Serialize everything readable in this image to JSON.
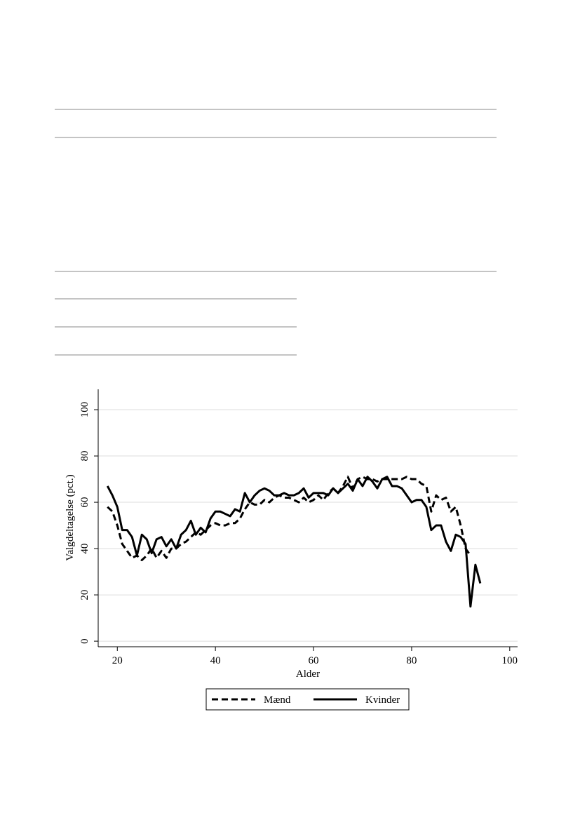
{
  "chart_data": {
    "type": "line",
    "xlabel": "Alder",
    "ylabel": "Valgdeltagelse (pct.)",
    "x": [
      18,
      19,
      20,
      21,
      22,
      23,
      24,
      25,
      26,
      27,
      28,
      29,
      30,
      31,
      32,
      33,
      34,
      35,
      36,
      37,
      38,
      39,
      40,
      41,
      42,
      43,
      44,
      45,
      46,
      47,
      48,
      49,
      50,
      51,
      52,
      53,
      54,
      55,
      56,
      57,
      58,
      59,
      60,
      61,
      62,
      63,
      64,
      65,
      66,
      67,
      68,
      69,
      70,
      71,
      72,
      73,
      74,
      75,
      76,
      77,
      78,
      79,
      80,
      81,
      82,
      83,
      84,
      85,
      86,
      87,
      88,
      89,
      90,
      91,
      92,
      93,
      94
    ],
    "series": [
      {
        "name": "Mænd",
        "color": "#000000",
        "linestyle": "dashed",
        "values": [
          58,
          56,
          50,
          42,
          39,
          36,
          37,
          35,
          37,
          40,
          36,
          39,
          36,
          40,
          40,
          42,
          43,
          45,
          47,
          46,
          48,
          50,
          51,
          50,
          50,
          51,
          51,
          53,
          57,
          60,
          59,
          59,
          61,
          60,
          62,
          63,
          62,
          62,
          61,
          60,
          62,
          60,
          61,
          63,
          61,
          64,
          66,
          64,
          67,
          71,
          66,
          70,
          71,
          70,
          70,
          69,
          70,
          70,
          70,
          70,
          70,
          71,
          70,
          70,
          68,
          67,
          56,
          63,
          61,
          62,
          56,
          58,
          50,
          40,
          37,
          null,
          null
        ]
      },
      {
        "name": "Kvinder",
        "color": "#000000",
        "linestyle": "solid",
        "values": [
          67,
          63,
          58,
          48,
          48,
          45,
          37,
          46,
          44,
          38,
          44,
          45,
          41,
          44,
          40,
          46,
          48,
          52,
          46,
          49,
          47,
          53,
          56,
          56,
          55,
          54,
          57,
          56,
          64,
          60,
          63,
          65,
          66,
          65,
          63,
          63,
          64,
          63,
          63,
          64,
          66,
          62,
          64,
          64,
          64,
          63,
          66,
          64,
          66,
          68,
          65,
          70,
          67,
          71,
          69,
          66,
          70,
          71,
          67,
          67,
          66,
          63,
          60,
          61,
          61,
          58,
          48,
          50,
          50,
          43,
          39,
          46,
          45,
          42,
          15,
          33,
          25
        ]
      }
    ],
    "xlim": [
      16.1,
      101.6
    ],
    "ylim": [
      -2.4,
      108.8
    ],
    "xticks": [
      20,
      40,
      60,
      80,
      100
    ],
    "yticks": [
      0,
      20,
      40,
      60,
      80,
      100
    ],
    "grid": true,
    "legend": "bottom"
  }
}
